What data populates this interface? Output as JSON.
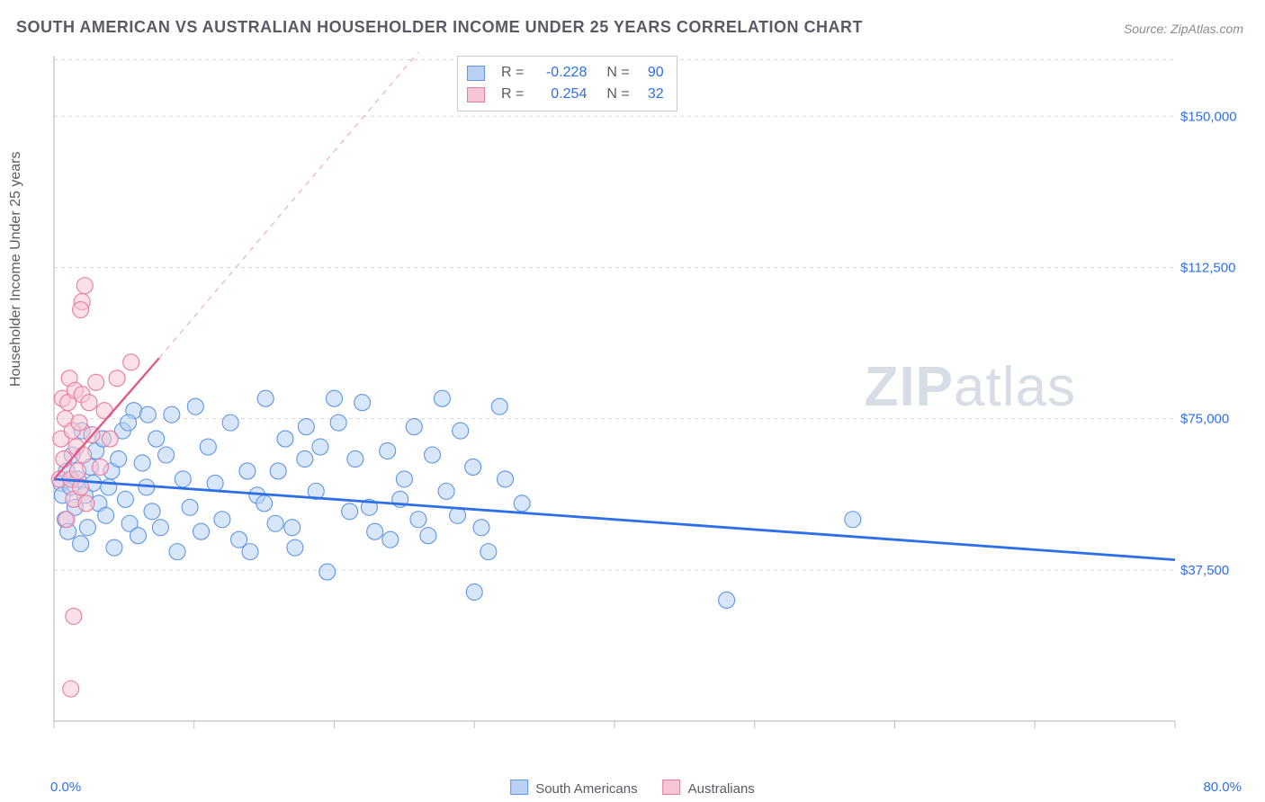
{
  "title": "SOUTH AMERICAN VS AUSTRALIAN HOUSEHOLDER INCOME UNDER 25 YEARS CORRELATION CHART",
  "source_label": "Source:",
  "source_value": "ZipAtlas.com",
  "watermark_a": "ZIP",
  "watermark_b": "atlas",
  "chart": {
    "type": "scatter",
    "xlim": [
      0,
      80
    ],
    "ylim": [
      0,
      165000
    ],
    "yticks": [
      37500,
      75000,
      112500,
      150000
    ],
    "ytick_labels": [
      "$37,500",
      "$75,000",
      "$112,500",
      "$150,000"
    ],
    "x_start_label": "0.0%",
    "x_end_label": "80.0%",
    "xticks": [
      0,
      10,
      20,
      30,
      40,
      50,
      60,
      70,
      80
    ],
    "ylabel": "Householder Income Under 25 years",
    "background_color": "#ffffff",
    "grid_color": "#d6d6dd",
    "grid_dash": "4,4",
    "axis_color": "#bfbfc7",
    "marker_radius": 9,
    "marker_stroke_width": 1.1,
    "series": [
      {
        "name": "South Americans",
        "fill": "#b8d1f4",
        "stroke": "#5e95e5",
        "fill_opacity": 0.55,
        "R": "-0.228",
        "N": "90",
        "trend": {
          "x1": 0,
          "y1": 60000,
          "x2": 80,
          "y2": 40000,
          "color": "#2e6fe8",
          "width": 2.8
        },
        "points": [
          [
            0.5,
            59000
          ],
          [
            0.6,
            56000
          ],
          [
            0.8,
            50000
          ],
          [
            0.9,
            62000
          ],
          [
            1.0,
            47000
          ],
          [
            1.2,
            58000
          ],
          [
            1.3,
            66000
          ],
          [
            1.5,
            53000
          ],
          [
            1.7,
            60000
          ],
          [
            1.9,
            44000
          ],
          [
            2.0,
            72000
          ],
          [
            2.2,
            56000
          ],
          [
            2.4,
            48000
          ],
          [
            2.6,
            63000
          ],
          [
            2.8,
            59000
          ],
          [
            3.0,
            67000
          ],
          [
            3.2,
            54000
          ],
          [
            3.5,
            70000
          ],
          [
            3.7,
            51000
          ],
          [
            3.9,
            58000
          ],
          [
            4.1,
            62000
          ],
          [
            4.3,
            43000
          ],
          [
            4.6,
            65000
          ],
          [
            4.9,
            72000
          ],
          [
            5.1,
            55000
          ],
          [
            5.4,
            49000
          ],
          [
            5.7,
            77000
          ],
          [
            6.0,
            46000
          ],
          [
            6.3,
            64000
          ],
          [
            6.6,
            58000
          ],
          [
            7.0,
            52000
          ],
          [
            7.3,
            70000
          ],
          [
            7.6,
            48000
          ],
          [
            8.0,
            66000
          ],
          [
            8.4,
            76000
          ],
          [
            8.8,
            42000
          ],
          [
            9.2,
            60000
          ],
          [
            9.7,
            53000
          ],
          [
            10.1,
            78000
          ],
          [
            10.5,
            47000
          ],
          [
            11.0,
            68000
          ],
          [
            11.5,
            59000
          ],
          [
            12.0,
            50000
          ],
          [
            12.6,
            74000
          ],
          [
            13.2,
            45000
          ],
          [
            13.8,
            62000
          ],
          [
            14.5,
            56000
          ],
          [
            15.1,
            80000
          ],
          [
            15.8,
            49000
          ],
          [
            16.5,
            70000
          ],
          [
            17.2,
            43000
          ],
          [
            17.9,
            65000
          ],
          [
            18.7,
            57000
          ],
          [
            19.5,
            37000
          ],
          [
            20.3,
            74000
          ],
          [
            21.1,
            52000
          ],
          [
            22.0,
            79000
          ],
          [
            22.9,
            47000
          ],
          [
            23.8,
            67000
          ],
          [
            24.7,
            55000
          ],
          [
            25.7,
            73000
          ],
          [
            26.7,
            46000
          ],
          [
            27.7,
            80000
          ],
          [
            28.8,
            51000
          ],
          [
            29.9,
            63000
          ],
          [
            31.0,
            42000
          ],
          [
            32.2,
            60000
          ],
          [
            33.4,
            54000
          ],
          [
            28.0,
            57000
          ],
          [
            29.0,
            72000
          ],
          [
            30.5,
            48000
          ],
          [
            31.8,
            78000
          ],
          [
            18.0,
            73000
          ],
          [
            19.0,
            68000
          ],
          [
            20.0,
            80000
          ],
          [
            21.5,
            65000
          ],
          [
            22.5,
            53000
          ],
          [
            24.0,
            45000
          ],
          [
            25.0,
            60000
          ],
          [
            26.0,
            50000
          ],
          [
            27.0,
            66000
          ],
          [
            14.0,
            42000
          ],
          [
            15.0,
            54000
          ],
          [
            16.0,
            62000
          ],
          [
            17.0,
            48000
          ],
          [
            30.0,
            32000
          ],
          [
            48.0,
            30000
          ],
          [
            57.0,
            50000
          ],
          [
            5.3,
            74000
          ],
          [
            6.7,
            76000
          ]
        ]
      },
      {
        "name": "Australians",
        "fill": "#f7c6d4",
        "stroke": "#e87ba1",
        "fill_opacity": 0.55,
        "R": "0.254",
        "N": "32",
        "trend": {
          "x1": 0,
          "y1": 60000,
          "x2": 7.5,
          "y2": 90000,
          "color": "#e05a8a",
          "width": 2.4,
          "dash_after_x": 7.5,
          "dash_y2": 170000,
          "dash_x2": 27
        },
        "points": [
          [
            0.4,
            60000
          ],
          [
            0.5,
            70000
          ],
          [
            0.6,
            80000
          ],
          [
            0.7,
            65000
          ],
          [
            0.8,
            75000
          ],
          [
            0.9,
            50000
          ],
          [
            1.0,
            79000
          ],
          [
            1.1,
            85000
          ],
          [
            1.2,
            60000
          ],
          [
            1.3,
            72000
          ],
          [
            1.4,
            55000
          ],
          [
            1.5,
            82000
          ],
          [
            1.6,
            68000
          ],
          [
            1.7,
            62000
          ],
          [
            1.8,
            74000
          ],
          [
            1.9,
            58000
          ],
          [
            2.0,
            81000
          ],
          [
            2.1,
            66000
          ],
          [
            2.3,
            54000
          ],
          [
            2.5,
            79000
          ],
          [
            2.7,
            71000
          ],
          [
            3.0,
            84000
          ],
          [
            3.3,
            63000
          ],
          [
            3.6,
            77000
          ],
          [
            4.0,
            70000
          ],
          [
            2.0,
            104000
          ],
          [
            2.2,
            108000
          ],
          [
            1.9,
            102000
          ],
          [
            4.5,
            85000
          ],
          [
            5.5,
            89000
          ],
          [
            1.4,
            26000
          ],
          [
            1.2,
            8000
          ]
        ]
      }
    ],
    "legend_bottom": [
      {
        "label": "South Americans",
        "fill": "#b8d1f4",
        "stroke": "#5e95e5"
      },
      {
        "label": "Australians",
        "fill": "#f7c6d4",
        "stroke": "#e87ba1"
      }
    ],
    "corr_legend_cols": [
      "R =",
      "N ="
    ]
  }
}
